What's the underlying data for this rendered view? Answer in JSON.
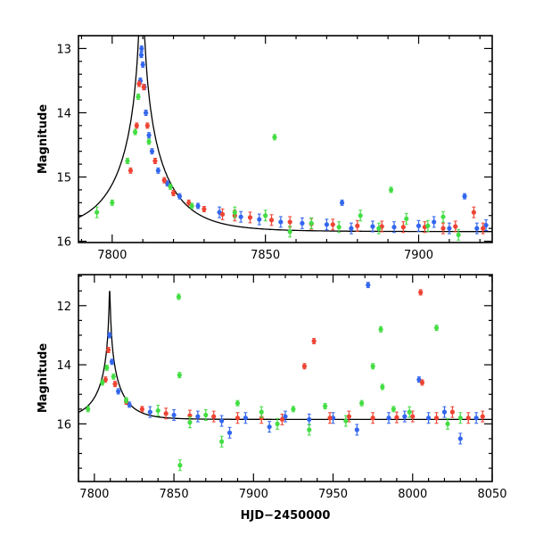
{
  "colors": {
    "ogle": "#3366ee",
    "red": "#ee4433",
    "green": "#44dd44",
    "model": "#000000"
  },
  "chart_data": [
    {
      "type": "scatter",
      "panel": "top",
      "xlim": [
        7789,
        7924
      ],
      "ylim": [
        16.02,
        12.8
      ],
      "y_inverted": true,
      "ylabel": "Magnitude",
      "xlabel": "",
      "x_ticks": [
        "7800",
        "7850",
        "7900"
      ],
      "x_tick_values": [
        7800,
        7850,
        7900
      ],
      "y_ticks": [
        "13",
        "14",
        "15",
        "16"
      ],
      "y_tick_values": [
        13,
        14,
        15,
        16
      ],
      "model": {
        "t0": 7809.6,
        "u0": 0.018,
        "tE": 17,
        "base_mag": 15.85
      },
      "series": [
        {
          "color_key": "ogle",
          "points": [
            [
              7809.2,
              13.5
            ],
            [
              7809.5,
              13.1
            ],
            [
              7809.6,
              13.0
            ],
            [
              7810.0,
              13.25
            ],
            [
              7810.5,
              13.6
            ],
            [
              7811,
              14.0
            ],
            [
              7812,
              14.35
            ],
            [
              7813,
              14.6
            ],
            [
              7815,
              14.9
            ],
            [
              7818,
              15.1
            ],
            [
              7822,
              15.3
            ],
            [
              7828,
              15.45
            ],
            [
              7835,
              15.55
            ],
            [
              7842,
              15.62
            ],
            [
              7848,
              15.66
            ],
            [
              7855,
              15.7
            ],
            [
              7862,
              15.72
            ],
            [
              7870,
              15.74
            ],
            [
              7875,
              15.4
            ],
            [
              7878,
              15.8
            ],
            [
              7885,
              15.77
            ],
            [
              7892,
              15.78
            ],
            [
              7900,
              15.76
            ],
            [
              7905,
              15.7
            ],
            [
              7910,
              15.8
            ],
            [
              7915,
              15.3
            ],
            [
              7919,
              15.8
            ],
            [
              7922,
              15.75
            ]
          ]
        },
        {
          "color_key": "red",
          "points": [
            [
              7806,
              14.9
            ],
            [
              7808,
              14.2
            ],
            [
              7808.8,
              13.55
            ],
            [
              7810.3,
              13.6
            ],
            [
              7811.5,
              14.2
            ],
            [
              7814,
              14.75
            ],
            [
              7817,
              15.05
            ],
            [
              7820,
              15.25
            ],
            [
              7825,
              15.4
            ],
            [
              7830,
              15.5
            ],
            [
              7836,
              15.58
            ],
            [
              7840,
              15.6
            ],
            [
              7845,
              15.63
            ],
            [
              7852,
              15.67
            ],
            [
              7858,
              15.7
            ],
            [
              7865,
              15.73
            ],
            [
              7872,
              15.74
            ],
            [
              7880,
              15.76
            ],
            [
              7888,
              15.77
            ],
            [
              7895,
              15.78
            ],
            [
              7902,
              15.78
            ],
            [
              7908,
              15.8
            ],
            [
              7912,
              15.77
            ],
            [
              7918,
              15.55
            ],
            [
              7921,
              15.8
            ]
          ]
        },
        {
          "color_key": "green",
          "points": [
            [
              7795,
              15.55
            ],
            [
              7800,
              15.4
            ],
            [
              7805,
              14.75
            ],
            [
              7807.5,
              14.3
            ],
            [
              7808.5,
              13.75
            ],
            [
              7812,
              14.45
            ],
            [
              7819,
              15.15
            ],
            [
              7826,
              15.45
            ],
            [
              7840,
              15.55
            ],
            [
              7850,
              15.6
            ],
            [
              7853,
              14.38
            ],
            [
              7858,
              15.85
            ],
            [
              7865,
              15.72
            ],
            [
              7874,
              15.78
            ],
            [
              7881,
              15.6
            ],
            [
              7887,
              15.8
            ],
            [
              7891,
              15.2
            ],
            [
              7896,
              15.65
            ],
            [
              7903,
              15.76
            ],
            [
              7908,
              15.62
            ],
            [
              7913,
              15.9
            ]
          ]
        }
      ]
    },
    {
      "type": "scatter",
      "panel": "bottom",
      "xlim": [
        7790,
        8050
      ],
      "ylim": [
        17.95,
        10.95
      ],
      "y_inverted": true,
      "ylabel": "Magnitude",
      "xlabel": "HJD−2450000",
      "x_ticks": [
        "7800",
        "7850",
        "7900",
        "7950",
        "8000",
        "8050"
      ],
      "x_tick_values": [
        7800,
        7850,
        7900,
        7950,
        8000,
        8050
      ],
      "y_ticks": [
        "12",
        "14",
        "16"
      ],
      "y_tick_values": [
        12,
        14,
        16
      ],
      "model": {
        "t0": 7809.6,
        "u0": 0.018,
        "tE": 17,
        "base_mag": 15.85
      },
      "series": [
        {
          "color_key": "ogle",
          "points": [
            [
              7809.5,
              13.0
            ],
            [
              7811,
              13.9
            ],
            [
              7815,
              14.9
            ],
            [
              7822,
              15.35
            ],
            [
              7835,
              15.6
            ],
            [
              7850,
              15.7
            ],
            [
              7865,
              15.75
            ],
            [
              7880,
              15.9
            ],
            [
              7885,
              16.3
            ],
            [
              7895,
              15.8
            ],
            [
              7910,
              16.1
            ],
            [
              7920,
              15.75
            ],
            [
              7935,
              15.85
            ],
            [
              7950,
              15.8
            ],
            [
              7965,
              16.2
            ],
            [
              7972,
              11.3
            ],
            [
              7985,
              15.8
            ],
            [
              7995,
              15.75
            ],
            [
              8004,
              14.5
            ],
            [
              8010,
              15.8
            ],
            [
              8020,
              15.6
            ],
            [
              8030,
              16.5
            ],
            [
              8040,
              15.8
            ]
          ]
        },
        {
          "color_key": "red",
          "points": [
            [
              7807,
              14.5
            ],
            [
              7808.8,
              13.5
            ],
            [
              7813,
              14.65
            ],
            [
              7820,
              15.25
            ],
            [
              7830,
              15.5
            ],
            [
              7845,
              15.65
            ],
            [
              7860,
              15.72
            ],
            [
              7875,
              15.75
            ],
            [
              7890,
              15.8
            ],
            [
              7905,
              15.8
            ],
            [
              7918,
              15.85
            ],
            [
              7932,
              14.05
            ],
            [
              7938,
              13.2
            ],
            [
              7948,
              15.8
            ],
            [
              7960,
              15.75
            ],
            [
              7975,
              15.8
            ],
            [
              7990,
              15.78
            ],
            [
              8000,
              15.75
            ],
            [
              8005,
              11.55
            ],
            [
              8006,
              14.6
            ],
            [
              8015,
              15.8
            ],
            [
              8025,
              15.6
            ],
            [
              8035,
              15.8
            ],
            [
              8044,
              15.75
            ]
          ]
        },
        {
          "color_key": "green",
          "points": [
            [
              7796,
              15.5
            ],
            [
              7805,
              14.6
            ],
            [
              7807.8,
              14.1
            ],
            [
              7812,
              14.4
            ],
            [
              7820,
              15.2
            ],
            [
              7840,
              15.55
            ],
            [
              7853,
              11.7
            ],
            [
              7853.5,
              14.35
            ],
            [
              7853.8,
              17.4
            ],
            [
              7860,
              15.95
            ],
            [
              7870,
              15.7
            ],
            [
              7880,
              16.6
            ],
            [
              7890,
              15.3
            ],
            [
              7905,
              15.6
            ],
            [
              7915,
              16.0
            ],
            [
              7925,
              15.5
            ],
            [
              7935,
              16.2
            ],
            [
              7945,
              15.4
            ],
            [
              7958,
              15.9
            ],
            [
              7968,
              15.3
            ],
            [
              7975,
              14.05
            ],
            [
              7980,
              12.8
            ],
            [
              7981,
              14.75
            ],
            [
              7988,
              15.5
            ],
            [
              7998,
              15.6
            ],
            [
              8015,
              12.75
            ],
            [
              8022,
              16.0
            ],
            [
              8030,
              15.8
            ]
          ]
        }
      ]
    }
  ]
}
